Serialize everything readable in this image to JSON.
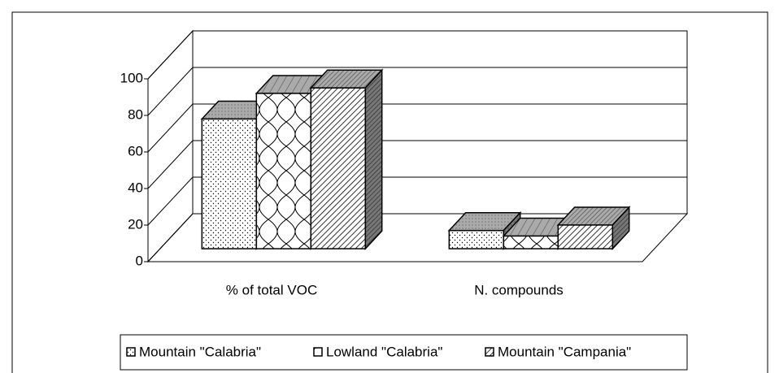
{
  "chart_data": {
    "type": "bar3d",
    "categories": [
      "% of total VOC",
      "N. compounds"
    ],
    "series": [
      {
        "name": "Mountain \"Calabria\"",
        "values": [
          71,
          10
        ]
      },
      {
        "name": "Lowland \"Calabria\"",
        "values": [
          85,
          7
        ]
      },
      {
        "name": "Mountain \"Campania\"",
        "values": [
          88,
          13
        ]
      }
    ],
    "ylim": [
      0,
      100
    ],
    "yticks": [
      0,
      20,
      40,
      60,
      80,
      100
    ],
    "grid": true,
    "legend": "bottom"
  }
}
